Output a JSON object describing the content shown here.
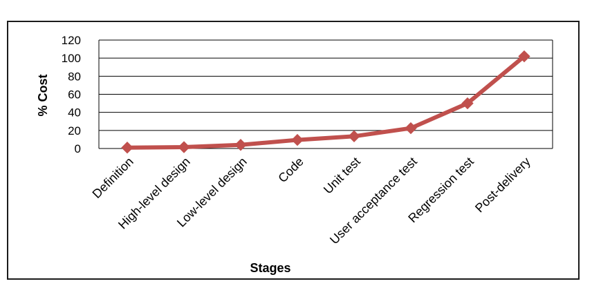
{
  "chart_data": {
    "type": "line",
    "title": "",
    "xlabel": "Stages",
    "ylabel": "% Cost",
    "categories": [
      "Definition",
      "High-level design",
      "Low-level design",
      "Code",
      "Unit test",
      "User acceptance test",
      "Regression test",
      "Post-delivery"
    ],
    "series": [
      {
        "values": [
          1,
          1.5,
          4,
          9.5,
          13.5,
          22.5,
          50,
          102
        ],
        "color": "#C0504D"
      }
    ],
    "ylim": [
      0,
      120
    ],
    "yticks": [
      0,
      20,
      40,
      60,
      80,
      100,
      120
    ],
    "grid": true,
    "legend": "none",
    "marker": "diamond"
  }
}
